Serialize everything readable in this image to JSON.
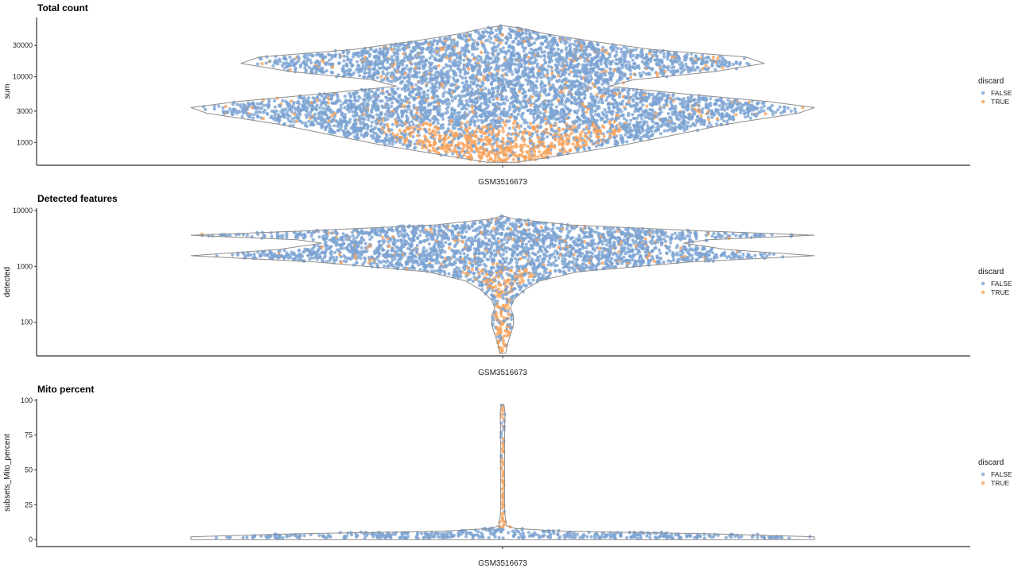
{
  "colors": {
    "FALSE": "#7aa3d2",
    "TRUE": "#f9a35a",
    "violin_outline": "#8c8c8c"
  },
  "chart_data": [
    {
      "type": "violin-beeswarm",
      "title": "Total count",
      "xlabel": "",
      "ylabel": "sum",
      "y_scale": "log10",
      "ylim": [
        450,
        80000
      ],
      "ticks": [
        1000,
        3000,
        10000,
        30000
      ],
      "tick_labels": [
        "1000",
        "3000",
        "10000",
        "30000"
      ],
      "category": "GSM3516673",
      "density": [
        [
          500,
          0.05
        ],
        [
          650,
          0.2
        ],
        [
          900,
          0.38
        ],
        [
          1300,
          0.55
        ],
        [
          1900,
          0.72
        ],
        [
          2800,
          0.95
        ],
        [
          3400,
          1.0
        ],
        [
          4200,
          0.85
        ],
        [
          5500,
          0.58
        ],
        [
          7200,
          0.34
        ],
        [
          9000,
          0.42
        ],
        [
          12000,
          0.68
        ],
        [
          16000,
          0.84
        ],
        [
          20000,
          0.78
        ],
        [
          26000,
          0.48
        ],
        [
          34000,
          0.3
        ],
        [
          45000,
          0.14
        ],
        [
          55000,
          0.06
        ],
        [
          60000,
          0.0
        ]
      ],
      "true_band": [
        500,
        2000
      ],
      "true_scatter_fraction": 0.06,
      "legend": {
        "title": "discard",
        "entries": [
          "FALSE",
          "TRUE"
        ]
      }
    },
    {
      "type": "violin-beeswarm",
      "title": "Detected features",
      "xlabel": "",
      "ylabel": "detected",
      "y_scale": "log10",
      "ylim": [
        25,
        11000
      ],
      "ticks": [
        100,
        1000,
        10000
      ],
      "tick_labels": [
        "100",
        "1000",
        "10000"
      ],
      "category": "GSM3516673",
      "density": [
        [
          28,
          0.01
        ],
        [
          40,
          0.015
        ],
        [
          60,
          0.025
        ],
        [
          90,
          0.035
        ],
        [
          130,
          0.035
        ],
        [
          180,
          0.025
        ],
        [
          250,
          0.035
        ],
        [
          380,
          0.07
        ],
        [
          550,
          0.12
        ],
        [
          800,
          0.24
        ],
        [
          1200,
          0.6
        ],
        [
          1550,
          1.0
        ],
        [
          2000,
          0.72
        ],
        [
          2600,
          0.58
        ],
        [
          3000,
          0.66
        ],
        [
          3600,
          1.0
        ],
        [
          4300,
          0.64
        ],
        [
          5500,
          0.22
        ],
        [
          7000,
          0.04
        ],
        [
          8000,
          0.0
        ]
      ],
      "true_band": [
        28,
        900
      ],
      "true_scatter_fraction": 0.05,
      "legend": {
        "title": "discard",
        "entries": [
          "FALSE",
          "TRUE"
        ]
      }
    },
    {
      "type": "violin-beeswarm",
      "title": "Mito percent",
      "xlabel": "",
      "ylabel": "subsets_Mito_percent",
      "y_scale": "linear",
      "ylim": [
        -5,
        101
      ],
      "ticks": [
        0,
        25,
        50,
        75,
        100
      ],
      "tick_labels": [
        "0",
        "25",
        "50",
        "75",
        "100"
      ],
      "category": "GSM3516673",
      "density": [
        [
          0,
          1.0
        ],
        [
          2,
          1.0
        ],
        [
          4,
          0.7
        ],
        [
          6,
          0.2
        ],
        [
          8,
          0.04
        ],
        [
          10,
          0.012
        ],
        [
          20,
          0.006
        ],
        [
          40,
          0.006
        ],
        [
          60,
          0.006
        ],
        [
          80,
          0.006
        ],
        [
          90,
          0.008
        ],
        [
          97,
          0.004
        ]
      ],
      "true_band": [
        9,
        98
      ],
      "true_scatter_fraction": 0.0,
      "legend": {
        "title": "discard",
        "entries": [
          "FALSE",
          "TRUE"
        ]
      }
    }
  ]
}
